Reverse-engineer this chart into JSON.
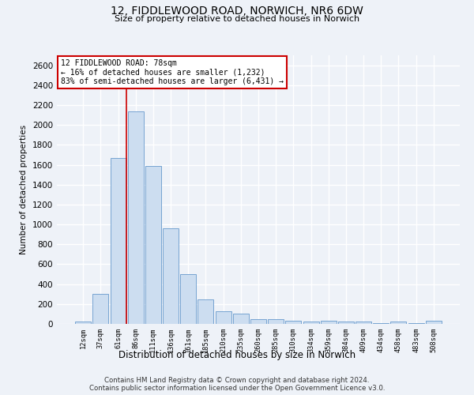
{
  "title_line1": "12, FIDDLEWOOD ROAD, NORWICH, NR6 6DW",
  "title_line2": "Size of property relative to detached houses in Norwich",
  "xlabel": "Distribution of detached houses by size in Norwich",
  "ylabel": "Number of detached properties",
  "bar_color": "#ccddf0",
  "bar_edge_color": "#6699cc",
  "categories": [
    "12sqm",
    "37sqm",
    "61sqm",
    "86sqm",
    "111sqm",
    "136sqm",
    "161sqm",
    "185sqm",
    "210sqm",
    "235sqm",
    "260sqm",
    "285sqm",
    "310sqm",
    "334sqm",
    "359sqm",
    "384sqm",
    "409sqm",
    "434sqm",
    "458sqm",
    "483sqm",
    "508sqm"
  ],
  "values": [
    25,
    300,
    1670,
    2140,
    1590,
    960,
    500,
    250,
    125,
    105,
    50,
    50,
    30,
    20,
    30,
    20,
    20,
    5,
    20,
    5,
    30
  ],
  "ylim": [
    0,
    2700
  ],
  "yticks": [
    0,
    200,
    400,
    600,
    800,
    1000,
    1200,
    1400,
    1600,
    1800,
    2000,
    2200,
    2400,
    2600
  ],
  "vline_x_index": 2,
  "annotation_text": "12 FIDDLEWOOD ROAD: 78sqm\n← 16% of detached houses are smaller (1,232)\n83% of semi-detached houses are larger (6,431) →",
  "vline_color": "#cc0000",
  "footer_line1": "Contains HM Land Registry data © Crown copyright and database right 2024.",
  "footer_line2": "Contains public sector information licensed under the Open Government Licence v3.0.",
  "background_color": "#eef2f8",
  "grid_color": "#ffffff"
}
